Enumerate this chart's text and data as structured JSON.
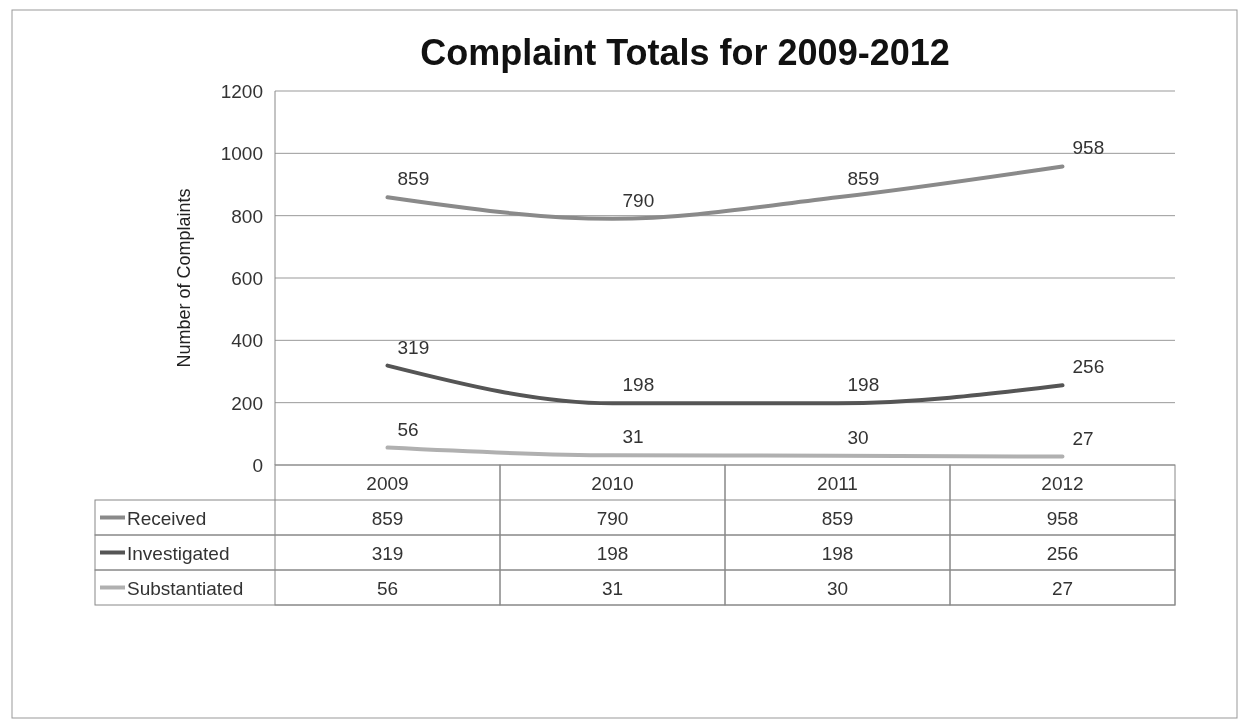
{
  "chart_data": {
    "type": "line",
    "title": "Complaint Totals for 2009-2012",
    "ylabel": "Number of Complaints",
    "categories": [
      "2009",
      "2010",
      "2011",
      "2012"
    ],
    "series": [
      {
        "name": "Received",
        "color": "#8a8a8a",
        "values": [
          859,
          790,
          859,
          958
        ]
      },
      {
        "name": "Investigated",
        "color": "#555555",
        "values": [
          319,
          198,
          198,
          256
        ]
      },
      {
        "name": "Substantiated",
        "color": "#b0b0b0",
        "values": [
          56,
          31,
          30,
          27
        ]
      }
    ],
    "annotations": [
      {
        "text": "859",
        "x": "2009",
        "y": 859
      },
      {
        "text": "790",
        "x": "2010",
        "y": 790
      },
      {
        "text": "859",
        "x": "2011",
        "y": 859
      },
      {
        "text": "958",
        "x": "2012",
        "y": 958
      },
      {
        "text": "319",
        "x": "2009",
        "y": 319
      },
      {
        "text": "198",
        "x": "2010",
        "y": 198
      },
      {
        "text": "198",
        "x": "2011",
        "y": 198
      },
      {
        "text": "256",
        "x": "2012",
        "y": 256
      },
      {
        "text": "56",
        "x": "2009",
        "y": 56
      },
      {
        "text": "31",
        "x": "2010",
        "y": 31
      },
      {
        "text": "30",
        "x": "2011",
        "y": 30
      },
      {
        "text": "27",
        "x": "2012",
        "y": 27
      }
    ],
    "ylim": [
      0,
      1200
    ],
    "yticks": [
      0,
      200,
      400,
      600,
      800,
      1000,
      1200
    ],
    "grid": "y",
    "legend": "bottom left",
    "data_labels": true,
    "marker": "none",
    "line_style": "solid"
  }
}
